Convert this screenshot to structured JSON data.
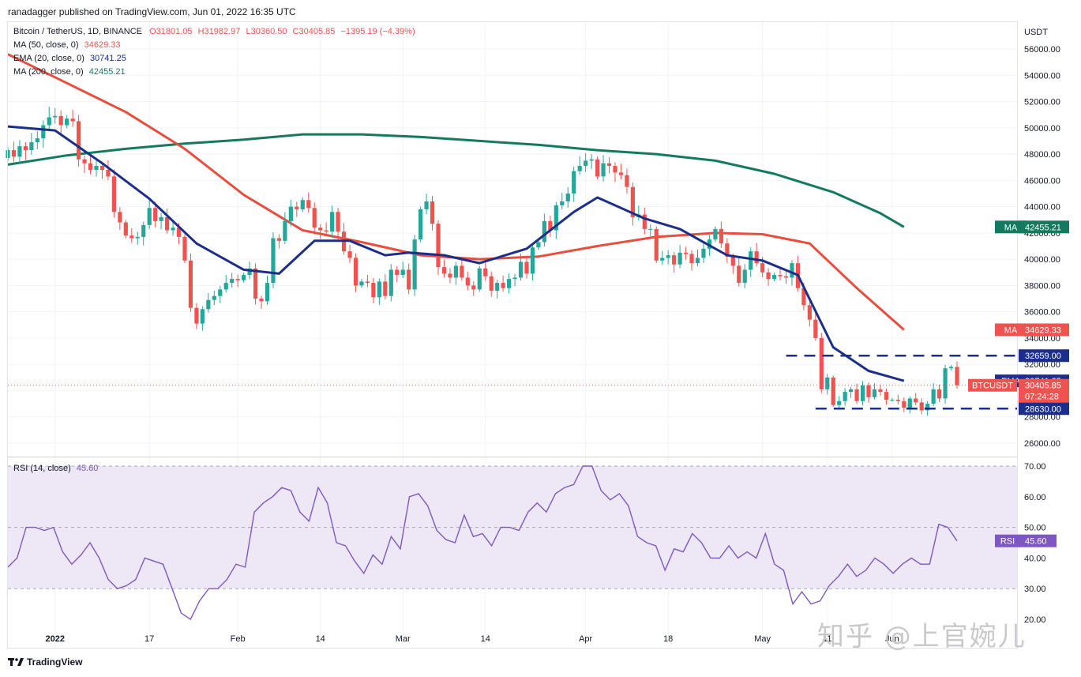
{
  "header": {
    "publish_line": "ranadagger published on TradingView.com, Jun 01, 2022 16:35 UTC"
  },
  "legend": {
    "symbol": "Bitcoin / TetherUS, 1D, BINANCE",
    "open": "O31801.05",
    "high": "H31982.97",
    "low": "L30360.50",
    "close": "C30405.85",
    "change": "−1395.19 (−4.39%)",
    "ma50_label": "MA (50, close, 0)",
    "ma50_value": "34629.33",
    "ema20_label": "EMA (20, close, 0)",
    "ema20_value": "30741.25",
    "ma200_label": "MA (200, close, 0)",
    "ma200_value": "42455.21",
    "rsi_label": "RSI (14, close)",
    "rsi_value": "45.60"
  },
  "colors": {
    "up": "#26a69a",
    "down": "#ef5350",
    "ma50": "#e84d3d",
    "ema20": "#1b2f8a",
    "ma200": "#137a5f",
    "rsi": "#7e57c2",
    "rsi_band": "#ede7f6",
    "last_price": "#ef5350",
    "support": "#1b2f8a"
  },
  "footer": {
    "brand": "TradingView",
    "watermark": "知乎 @上官婉儿"
  },
  "chart_data": [
    {
      "type": "candlestick",
      "title": "Bitcoin / TetherUS, 1D, BINANCE",
      "currency": "USDT",
      "ylim": [
        25000,
        57500
      ],
      "y_ticks": [
        "26000.00",
        "28000.00",
        "30000.00",
        "32000.00",
        "34000.00",
        "36000.00",
        "38000.00",
        "40000.00",
        "42000.00",
        "44000.00",
        "46000.00",
        "48000.00",
        "50000.00",
        "52000.00",
        "54000.00",
        "56000.00"
      ],
      "x_tick_labels": [
        "2022",
        "17",
        "Feb",
        "14",
        "Mar",
        "14",
        "Apr",
        "18",
        "May",
        "11",
        "Jun"
      ],
      "x_tick_days": [
        8,
        24,
        39,
        53,
        67,
        81,
        98,
        112,
        128,
        139,
        150
      ],
      "close": [
        48300,
        47800,
        48600,
        48300,
        48900,
        49200,
        50200,
        50800,
        50900,
        50200,
        50700,
        50500,
        47600,
        47300,
        46800,
        47100,
        46800,
        46300,
        43600,
        42800,
        41800,
        41600,
        41700,
        42600,
        43900,
        42900,
        43200,
        42200,
        42400,
        41700,
        39900,
        36300,
        35100,
        36200,
        36900,
        37200,
        37700,
        38200,
        38500,
        38400,
        38800,
        39300,
        37000,
        36800,
        38200,
        41600,
        41400,
        42900,
        44000,
        43800,
        44500,
        43900,
        42400,
        42200,
        42100,
        43600,
        42100,
        40600,
        40100,
        38000,
        38300,
        38200,
        37100,
        38300,
        37200,
        39200,
        38800,
        39200,
        37700,
        41500,
        43800,
        44400,
        42700,
        39400,
        38900,
        38600,
        39500,
        38600,
        38000,
        37700,
        39300,
        38700,
        37600,
        38200,
        37800,
        38500,
        38600,
        39800,
        38900,
        40900,
        41300,
        42900,
        42200,
        44100,
        44400,
        45000,
        46700,
        47100,
        47500,
        47600,
        46300,
        47300,
        47100,
        46600,
        46400,
        45500,
        43200,
        43400,
        42300,
        42300,
        39900,
        40100,
        40300,
        39600,
        40500,
        40400,
        39700,
        40100,
        40800,
        41500,
        42300,
        41200,
        40200,
        39500,
        38200,
        39200,
        40600,
        39700,
        39000,
        38500,
        38800,
        38700,
        38600,
        39700,
        37800,
        36500,
        35400,
        34000,
        30100,
        31000,
        28900,
        29200,
        29900,
        30100,
        29200,
        30400,
        29500,
        30100,
        29900,
        29300,
        29300,
        29200,
        28700,
        29400,
        29100,
        28500,
        29000,
        30100,
        29400,
        31700,
        31800,
        30405.85
      ],
      "open_first": 47700,
      "high_extra_pct": 0.012,
      "low_extra_pct": 0.012,
      "ma50_points": [
        [
          0,
          55600
        ],
        [
          10,
          53400
        ],
        [
          20,
          51200
        ],
        [
          30,
          48400
        ],
        [
          40,
          44900
        ],
        [
          50,
          42200
        ],
        [
          60,
          41300
        ],
        [
          70,
          40300
        ],
        [
          80,
          40000
        ],
        [
          90,
          40200
        ],
        [
          100,
          41000
        ],
        [
          110,
          41700
        ],
        [
          120,
          42000
        ],
        [
          128,
          41900
        ],
        [
          136,
          41200
        ],
        [
          144,
          37800
        ],
        [
          152,
          34629.33
        ]
      ],
      "ema20_points": [
        [
          0,
          50100
        ],
        [
          8,
          49800
        ],
        [
          16,
          47300
        ],
        [
          24,
          44600
        ],
        [
          32,
          41200
        ],
        [
          40,
          39200
        ],
        [
          46,
          38900
        ],
        [
          52,
          41400
        ],
        [
          58,
          41400
        ],
        [
          64,
          40300
        ],
        [
          68,
          40500
        ],
        [
          74,
          40300
        ],
        [
          80,
          39700
        ],
        [
          88,
          40800
        ],
        [
          96,
          43600
        ],
        [
          100,
          44700
        ],
        [
          108,
          43100
        ],
        [
          114,
          42300
        ],
        [
          122,
          40300
        ],
        [
          128,
          39900
        ],
        [
          134,
          38800
        ],
        [
          140,
          33300
        ],
        [
          146,
          31500
        ],
        [
          152,
          30741.25
        ]
      ],
      "ma200_points": [
        [
          0,
          47200
        ],
        [
          10,
          47900
        ],
        [
          20,
          48400
        ],
        [
          30,
          48800
        ],
        [
          40,
          49100
        ],
        [
          50,
          49500
        ],
        [
          60,
          49500
        ],
        [
          70,
          49300
        ],
        [
          80,
          49000
        ],
        [
          90,
          48700
        ],
        [
          100,
          48300
        ],
        [
          110,
          48000
        ],
        [
          120,
          47500
        ],
        [
          130,
          46500
        ],
        [
          140,
          45100
        ],
        [
          148,
          43500
        ],
        [
          152,
          42455.21
        ]
      ],
      "levels": [
        {
          "label": "32659.00",
          "value": 32659,
          "from_day": 132
        },
        {
          "label": "28630.00",
          "value": 28630,
          "from_day": 137
        }
      ],
      "last_price_label": "BTCUSDT",
      "last_price": "30405.85",
      "countdown": "07:24:28",
      "price_tags": [
        {
          "name": "MA",
          "value": "42455.21",
          "y": 42455.21,
          "color": "#137a5f"
        },
        {
          "name": "MA",
          "value": "34629.33",
          "y": 34629.33,
          "color": "#ef5350"
        },
        {
          "name": "EMA",
          "value": "30741.25",
          "y": 30741.25,
          "color": "#1b2f8a"
        }
      ]
    },
    {
      "type": "line",
      "title": "RSI (14, close)",
      "ylim": [
        18,
        72
      ],
      "y_ticks": [
        "20.00",
        "30.00",
        "40.00",
        "50.00",
        "60.00",
        "70.00"
      ],
      "band": [
        30,
        70
      ],
      "midline": 50,
      "rsi_points": [
        [
          0,
          37
        ],
        [
          2,
          40
        ],
        [
          4,
          50
        ],
        [
          6,
          50
        ],
        [
          8,
          49
        ],
        [
          10,
          50
        ],
        [
          12,
          42
        ],
        [
          14,
          38
        ],
        [
          16,
          41
        ],
        [
          18,
          45
        ],
        [
          20,
          40
        ],
        [
          22,
          33
        ],
        [
          24,
          30
        ],
        [
          26,
          31
        ],
        [
          28,
          33
        ],
        [
          30,
          40
        ],
        [
          32,
          39
        ],
        [
          34,
          38
        ],
        [
          36,
          30
        ],
        [
          38,
          22
        ],
        [
          40,
          20
        ],
        [
          42,
          26
        ],
        [
          44,
          30
        ],
        [
          46,
          30
        ],
        [
          48,
          33
        ],
        [
          50,
          38
        ],
        [
          52,
          37
        ],
        [
          54,
          55
        ],
        [
          56,
          58
        ],
        [
          58,
          60
        ],
        [
          60,
          63
        ],
        [
          62,
          62
        ],
        [
          64,
          55
        ],
        [
          66,
          52
        ],
        [
          68,
          63
        ],
        [
          70,
          58
        ],
        [
          72,
          45
        ],
        [
          74,
          44
        ],
        [
          76,
          39
        ],
        [
          78,
          35
        ],
        [
          80,
          41
        ],
        [
          82,
          38
        ],
        [
          84,
          47
        ],
        [
          86,
          43
        ],
        [
          88,
          60
        ],
        [
          90,
          61
        ],
        [
          92,
          57
        ],
        [
          94,
          49
        ],
        [
          96,
          46
        ],
        [
          98,
          45
        ],
        [
          100,
          54
        ],
        [
          102,
          47
        ],
        [
          104,
          48
        ],
        [
          106,
          44
        ],
        [
          108,
          50
        ],
        [
          110,
          50
        ],
        [
          112,
          49
        ],
        [
          114,
          55
        ],
        [
          116,
          58
        ],
        [
          118,
          55
        ],
        [
          120,
          61
        ],
        [
          122,
          63
        ],
        [
          124,
          64
        ],
        [
          126,
          70
        ],
        [
          128,
          70
        ],
        [
          130,
          62
        ],
        [
          132,
          59
        ],
        [
          134,
          61
        ],
        [
          136,
          57
        ],
        [
          138,
          47
        ],
        [
          140,
          45
        ],
        [
          142,
          44
        ],
        [
          144,
          36
        ],
        [
          146,
          43
        ],
        [
          148,
          42
        ],
        [
          150,
          48
        ],
        [
          152,
          45
        ],
        [
          154,
          40
        ],
        [
          156,
          40
        ],
        [
          158,
          44
        ],
        [
          160,
          40
        ],
        [
          162,
          42
        ],
        [
          164,
          40
        ],
        [
          166,
          48
        ],
        [
          168,
          38
        ],
        [
          170,
          36
        ],
        [
          172,
          25
        ],
        [
          174,
          29
        ],
        [
          176,
          25
        ],
        [
          178,
          26
        ],
        [
          180,
          31
        ],
        [
          182,
          34
        ],
        [
          184,
          38
        ],
        [
          186,
          34
        ],
        [
          188,
          36
        ],
        [
          190,
          40
        ],
        [
          192,
          38
        ],
        [
          194,
          35
        ],
        [
          196,
          38
        ],
        [
          198,
          40
        ],
        [
          200,
          38
        ],
        [
          202,
          38
        ],
        [
          204,
          51
        ],
        [
          206,
          50
        ],
        [
          208,
          45.6
        ]
      ],
      "rsi_last": "45.60"
    }
  ]
}
